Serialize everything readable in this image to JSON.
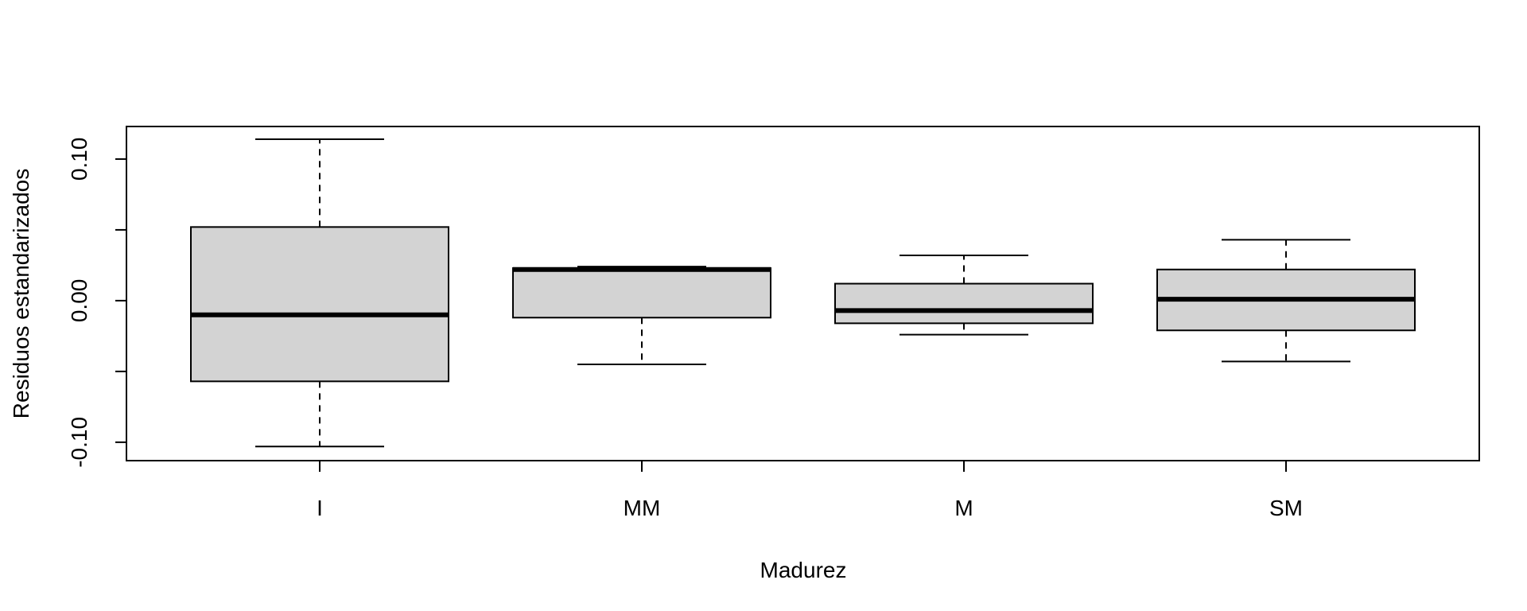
{
  "chart_data": {
    "type": "boxplot",
    "title": "",
    "xlabel": "Madurez",
    "ylabel": "Residuos estandarizados",
    "ylim": [
      -0.113,
      0.123
    ],
    "yticks": [
      -0.1,
      -0.05,
      0.0,
      0.05,
      0.1
    ],
    "ytick_labels": [
      "-0.10",
      "",
      "0.00",
      "",
      "0.10"
    ],
    "categories": [
      "I",
      "MM",
      "M",
      "SM"
    ],
    "boxes": [
      {
        "name": "I",
        "whisker_low": -0.103,
        "q1": -0.057,
        "median": -0.01,
        "q3": 0.052,
        "whisker_high": 0.114
      },
      {
        "name": "MM",
        "whisker_low": -0.045,
        "q1": -0.012,
        "median": 0.022,
        "q3": 0.023,
        "whisker_high": 0.024
      },
      {
        "name": "M",
        "whisker_low": -0.024,
        "q1": -0.016,
        "median": -0.007,
        "q3": 0.012,
        "whisker_high": 0.032
      },
      {
        "name": "SM",
        "whisker_low": -0.043,
        "q1": -0.021,
        "median": 0.001,
        "q3": 0.022,
        "whisker_high": 0.043
      }
    ],
    "box_fill": "#d3d3d3",
    "line_color": "#000000",
    "grid": false,
    "legend": "none"
  }
}
